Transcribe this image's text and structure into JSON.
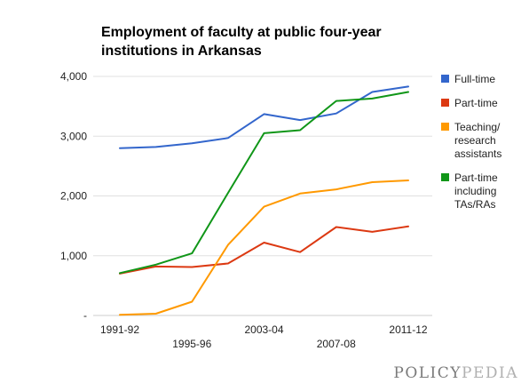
{
  "chart_data": {
    "type": "line",
    "title": "Employment of faculty at public four-year institutions in Arkansas",
    "xlabel": "",
    "ylabel": "",
    "x_tick_labels": [
      {
        "index": 0,
        "label": "1991-92",
        "row": 1
      },
      {
        "index": 2,
        "label": "1995-96",
        "row": 2
      },
      {
        "index": 4,
        "label": "2003-04",
        "row": 1
      },
      {
        "index": 6,
        "label": "2007-08",
        "row": 2
      },
      {
        "index": 8,
        "label": "2011-12",
        "row": 1
      }
    ],
    "point_count": 9,
    "ylim": [
      0,
      4000
    ],
    "y_ticks": [
      {
        "value": 0,
        "label": "-"
      },
      {
        "value": 1000,
        "label": "1,000"
      },
      {
        "value": 2000,
        "label": "2,000"
      },
      {
        "value": 3000,
        "label": "3,000"
      },
      {
        "value": 4000,
        "label": "4,000"
      }
    ],
    "grid": true,
    "legend_position": "right",
    "series": [
      {
        "name": "Full-time",
        "legend_lines": [
          "Full-time"
        ],
        "color": "#3366cc",
        "values": [
          2800,
          2820,
          2880,
          2970,
          3370,
          3270,
          3380,
          3740,
          3830
        ]
      },
      {
        "name": "Part-time",
        "legend_lines": [
          "Part-time"
        ],
        "color": "#dc3912",
        "values": [
          700,
          820,
          810,
          870,
          1220,
          1060,
          1480,
          1400,
          1490
        ]
      },
      {
        "name": "Teaching/ research assistants",
        "legend_lines": [
          "Teaching/",
          "research",
          "assistants"
        ],
        "color": "#ff9900",
        "values": [
          10,
          30,
          230,
          1180,
          1820,
          2040,
          2110,
          2230,
          2260
        ]
      },
      {
        "name": "Part-time including TAs/RAs",
        "legend_lines": [
          "Part-time",
          "including",
          "TAs/RAs"
        ],
        "color": "#109618",
        "values": [
          710,
          850,
          1040,
          2050,
          3050,
          3100,
          3590,
          3630,
          3740
        ]
      }
    ]
  },
  "branding": {
    "logo_text_main": "POLICY",
    "logo_text_accent": "PEDIA"
  }
}
